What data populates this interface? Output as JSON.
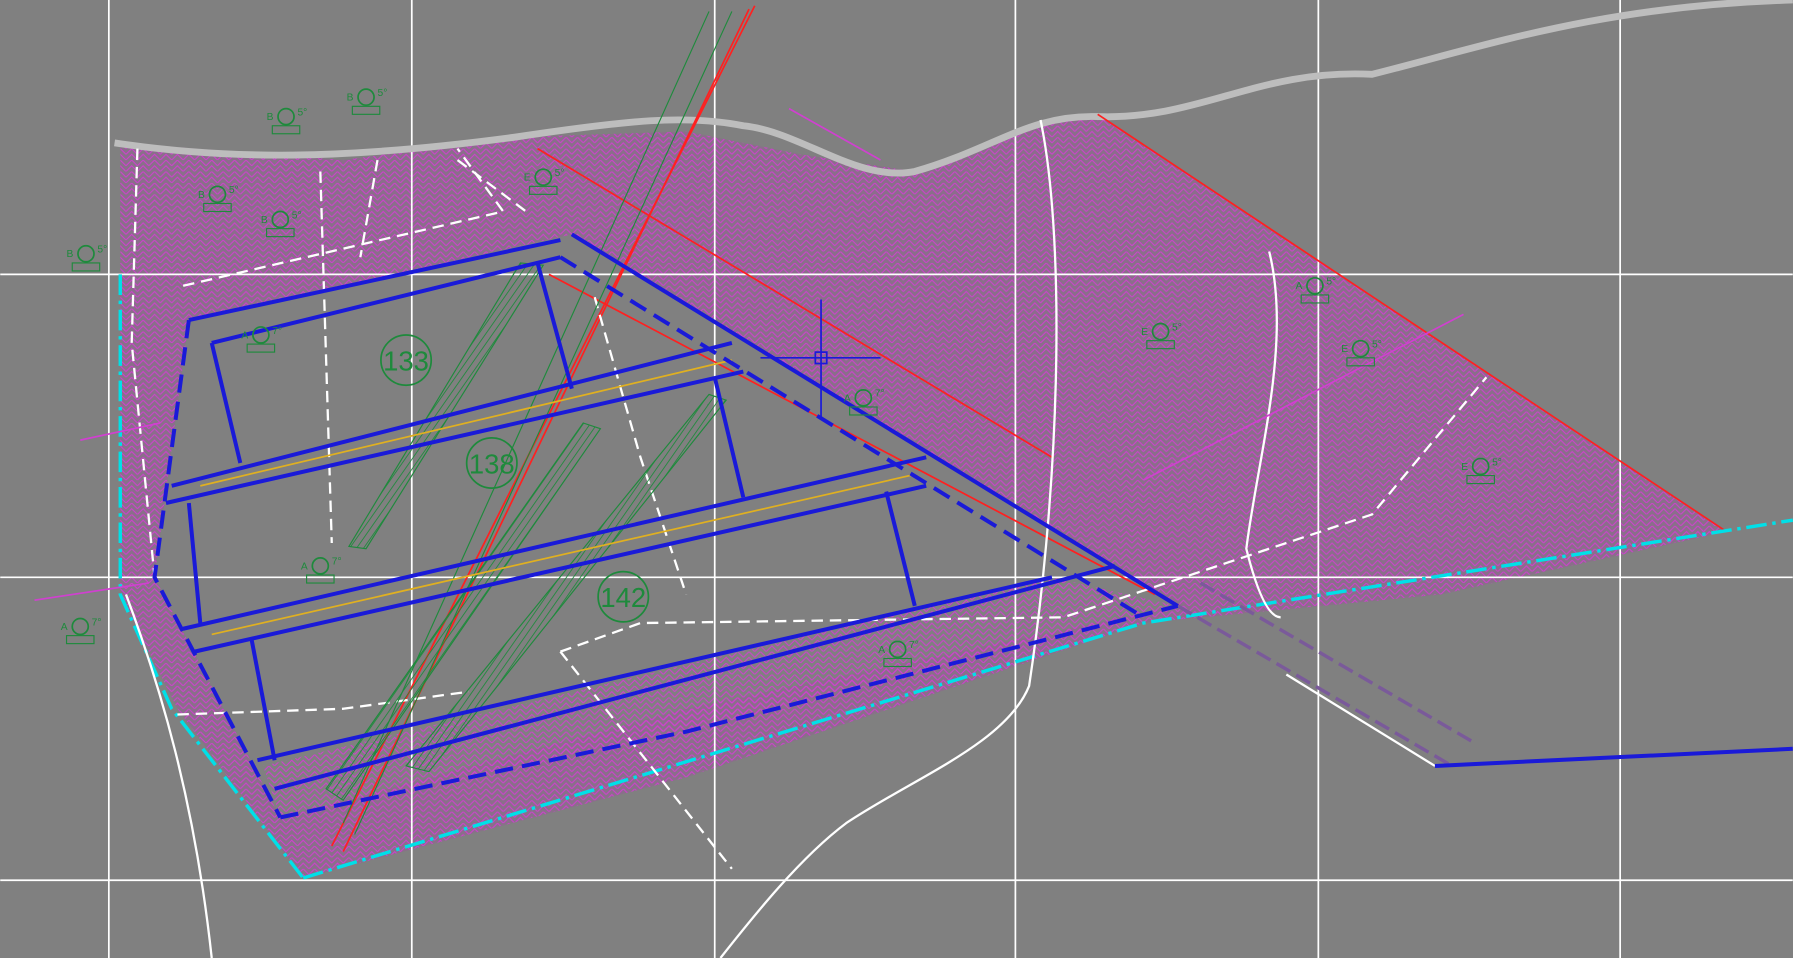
{
  "callouts": [
    {
      "label": "133"
    },
    {
      "label": "138"
    },
    {
      "label": "142"
    }
  ],
  "markers": [
    {
      "prefix": "B",
      "angle": "5°"
    },
    {
      "prefix": "B",
      "angle": "5°"
    },
    {
      "prefix": "B",
      "angle": "5°"
    },
    {
      "prefix": "B",
      "angle": "5°"
    },
    {
      "prefix": "B",
      "angle": "5°"
    },
    {
      "prefix": "A",
      "angle": "7°"
    },
    {
      "prefix": "A",
      "angle": "7°"
    },
    {
      "prefix": "A",
      "angle": "7°"
    },
    {
      "prefix": "A",
      "angle": "7°"
    },
    {
      "prefix": "E",
      "angle": "5°"
    },
    {
      "prefix": "A",
      "angle": "5°"
    },
    {
      "prefix": "E",
      "angle": "5°"
    },
    {
      "prefix": "E",
      "angle": "5°"
    },
    {
      "prefix": "A",
      "angle": "7°"
    },
    {
      "prefix": "E",
      "angle": "5°"
    }
  ]
}
